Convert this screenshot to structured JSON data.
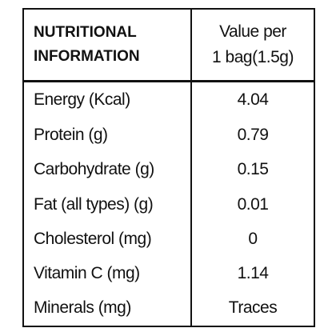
{
  "table": {
    "header": {
      "left": [
        "NUTRITIONAL",
        "INFORMATION"
      ],
      "right": [
        "Value per",
        "1 bag(1.5g)"
      ]
    },
    "rows": [
      [
        "Energy (Kcal)",
        "4.04"
      ],
      [
        "Protein (g)",
        "0.79"
      ],
      [
        "Carbohydrate (g)",
        "0.15"
      ],
      [
        "Fat (all types) (g)",
        "0.01"
      ],
      [
        "Cholesterol (mg)",
        "0"
      ],
      [
        "Vitamin C (mg)",
        "1.14"
      ],
      [
        "Minerals (mg)",
        "Traces"
      ]
    ]
  }
}
